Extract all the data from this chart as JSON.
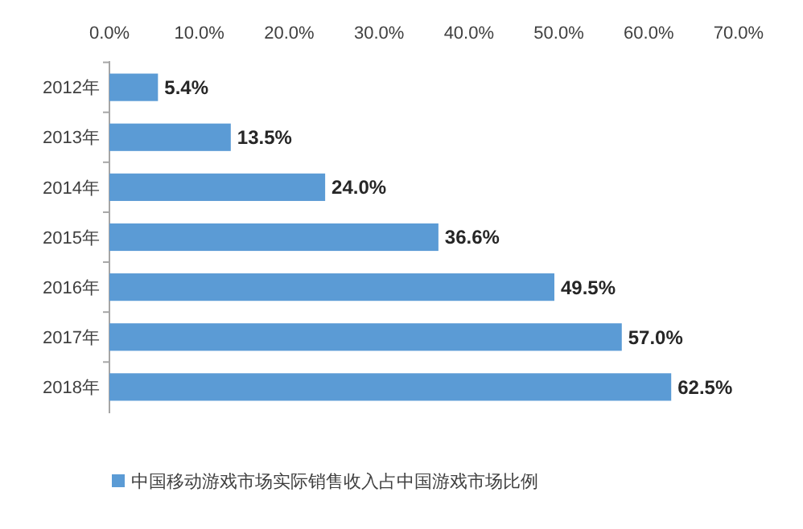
{
  "chart_data": {
    "type": "bar",
    "orientation": "horizontal",
    "categories": [
      "2012年",
      "2013年",
      "2014年",
      "2015年",
      "2016年",
      "2017年",
      "2018年"
    ],
    "series": [
      {
        "name": "中国移动游戏市场实际销售收入占中国游戏市场比例",
        "color": "#5b9bd5",
        "values": [
          5.4,
          13.5,
          24.0,
          36.6,
          49.5,
          57.0,
          62.5
        ],
        "value_labels": [
          "5.4%",
          "13.5%",
          "24.0%",
          "36.6%",
          "49.5%",
          "57.0%",
          "62.5%"
        ]
      }
    ],
    "xlim": [
      0,
      70
    ],
    "xticks": [
      {
        "value": 0,
        "label": "0.0%"
      },
      {
        "value": 10,
        "label": "10.0%"
      },
      {
        "value": 20,
        "label": "20.0%"
      },
      {
        "value": 30,
        "label": "30.0%"
      },
      {
        "value": 40,
        "label": "40.0%"
      },
      {
        "value": 50,
        "label": "50.0%"
      },
      {
        "value": 60,
        "label": "60.0%"
      },
      {
        "value": 70,
        "label": "70.0%"
      }
    ],
    "legend": "bottom"
  }
}
